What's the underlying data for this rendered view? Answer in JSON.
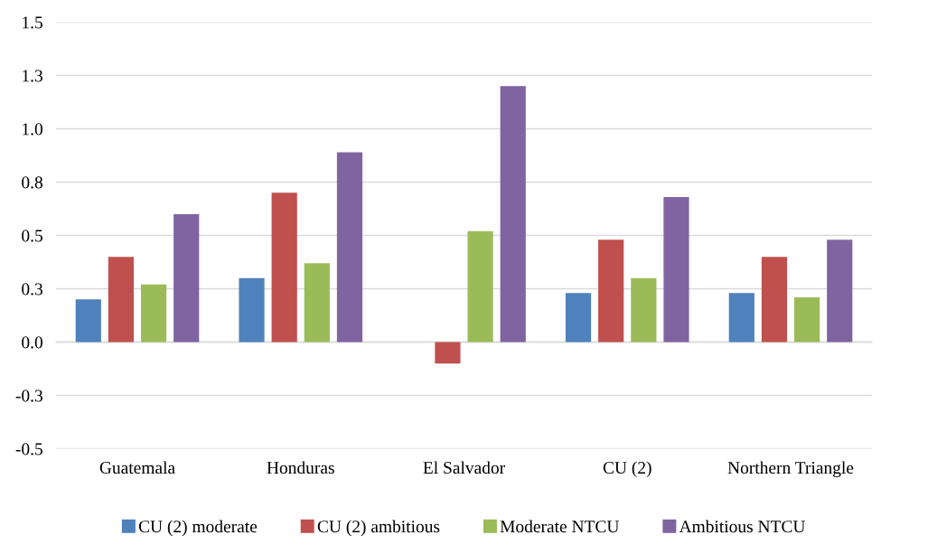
{
  "chart_data": {
    "type": "bar",
    "categories": [
      "Guatemala",
      "Honduras",
      "El Salvador",
      "CU (2)",
      "Northern Triangle"
    ],
    "series": [
      {
        "name": "CU (2) moderate",
        "color": "#4f81bd",
        "values": [
          0.2,
          0.3,
          null,
          0.23,
          0.23
        ]
      },
      {
        "name": "CU (2) ambitious",
        "color": "#c0504d",
        "values": [
          0.4,
          0.7,
          -0.1,
          0.48,
          0.4
        ]
      },
      {
        "name": "Moderate NTCU",
        "color": "#9bbb59",
        "values": [
          0.27,
          0.37,
          0.52,
          0.3,
          0.21
        ]
      },
      {
        "name": "Ambitious NTCU",
        "color": "#8064a2",
        "values": [
          0.6,
          0.89,
          1.2,
          0.68,
          0.48
        ]
      }
    ],
    "ylim": [
      -0.5,
      1.5
    ],
    "yticks": [
      -0.5,
      {
        "value": -0.25,
        "label": "-0.3"
      },
      {
        "value": 0,
        "label": "0.0"
      },
      {
        "value": 0.25,
        "label": "0.3"
      },
      0.5,
      {
        "value": 0.75,
        "label": "0.8"
      },
      {
        "value": 1,
        "label": "1.0"
      },
      {
        "value": 1.25,
        "label": "1.3"
      },
      1.5
    ],
    "grid": "y",
    "legend": "bottom"
  }
}
